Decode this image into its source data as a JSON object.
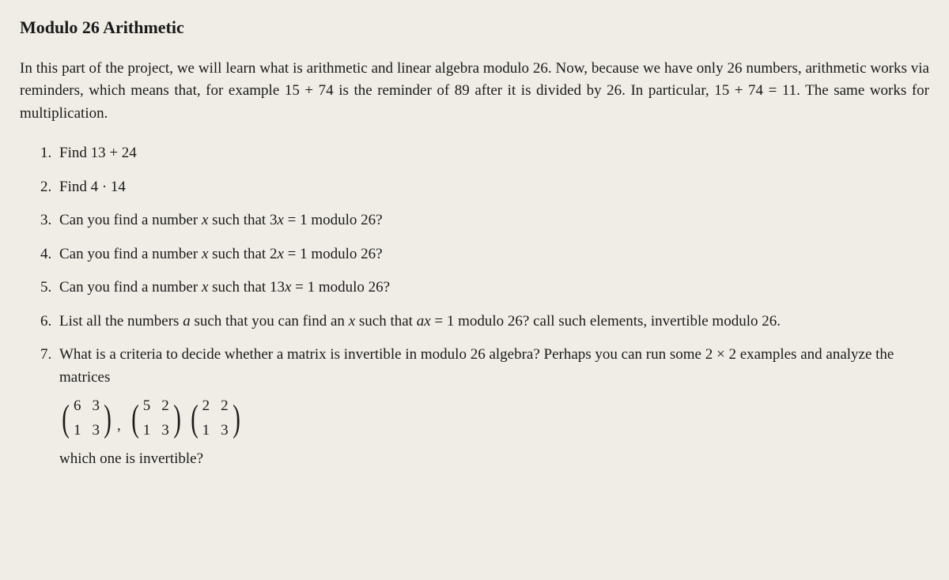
{
  "title": "Modulo 26 Arithmetic",
  "intro": "In this part of the project, we will learn what is arithmetic and linear algebra modulo 26. Now, because we have only 26 numbers, arithmetic works via reminders, which means that, for example 15 + 74 is the reminder of 89 after it is divided by 26. In particular, 15 + 74 = 11. The same works for multiplication.",
  "items": {
    "q1": "Find 13 + 24",
    "q2": "Find 4 · 14",
    "q3_pre": "Can you find a number ",
    "q3_mid": " such that 3",
    "q3_post": " = 1 modulo 26?",
    "q4_pre": "Can you find a number ",
    "q4_mid": " such that 2",
    "q4_post": " = 1 modulo 26?",
    "q5_pre": "Can you find a number ",
    "q5_mid": " such that 13",
    "q5_post": " = 1 modulo 26?",
    "q6_pre": "List all the numbers ",
    "q6_a": "a",
    "q6_mid1": " such that you can find an ",
    "q6_mid2": " such that ",
    "q6_ax": "ax",
    "q6_post": " = 1 modulo 26? call such elements, invertible modulo 26.",
    "q7_pre": "What is a criteria to decide whether a matrix is invertible in modulo 26 algebra? Perhaps you can run some 2 × 2 examples and analyze the matrices",
    "q7_post": "which one is invertible?"
  },
  "var_x": "x",
  "matrices": [
    {
      "cells": [
        "6",
        "3",
        "1",
        "3"
      ]
    },
    {
      "cells": [
        "5",
        "2",
        "1",
        "3"
      ]
    },
    {
      "cells": [
        "2",
        "2",
        "1",
        "3"
      ]
    }
  ],
  "styling": {
    "background_color": "#f0ede6",
    "text_color": "#1a1a1a",
    "title_fontsize": 22,
    "body_fontsize": 19,
    "font_family": "Computer Modern serif"
  }
}
